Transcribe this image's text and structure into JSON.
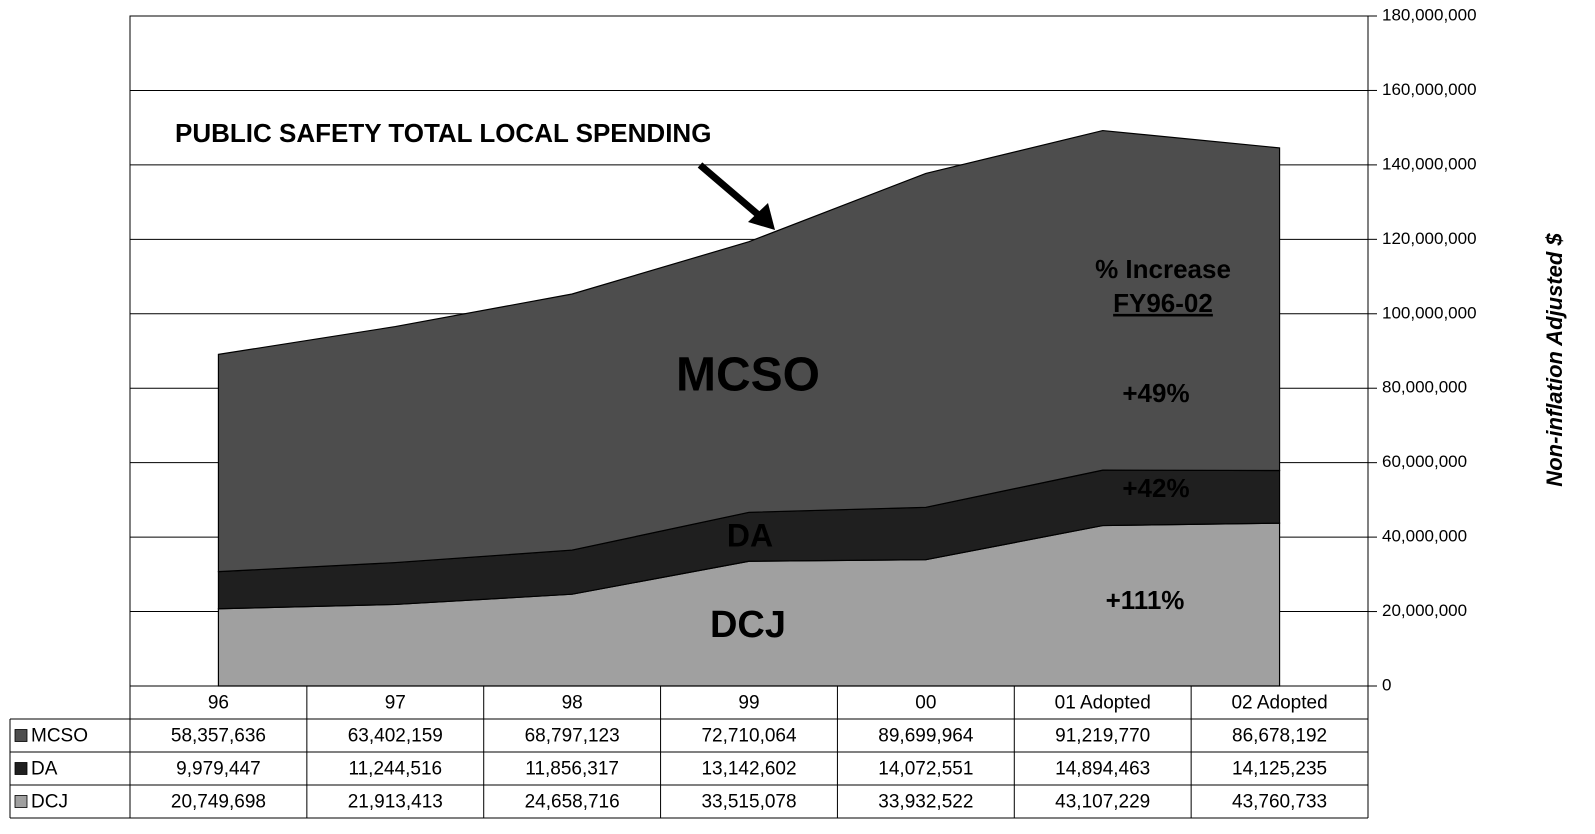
{
  "chart_data": {
    "type": "stacked_area",
    "categories": [
      "96",
      "97",
      "98",
      "99",
      "00",
      "01 Adopted",
      "02 Adopted"
    ],
    "series": [
      {
        "name": "MCSO",
        "color": "#4d4d4d",
        "values": [
          58357636,
          63402159,
          68797123,
          72710064,
          89699964,
          91219770,
          86678192
        ],
        "value_labels": [
          "58,357,636",
          "63,402,159",
          "68,797,123",
          "72,710,064",
          "89,699,964",
          "91,219,770",
          "86,678,192"
        ]
      },
      {
        "name": "DA",
        "color": "#1f1f1f",
        "values": [
          9979447,
          11244516,
          11856317,
          13142602,
          14072551,
          14894463,
          14125235
        ],
        "value_labels": [
          "9,979,447",
          "11,244,516",
          "11,856,317",
          "13,142,602",
          "14,072,551",
          "14,894,463",
          "14,125,235"
        ]
      },
      {
        "name": "DCJ",
        "color": "#a0a0a0",
        "values": [
          20749698,
          21913413,
          24658716,
          33515078,
          33932522,
          43107229,
          43760733
        ],
        "value_labels": [
          "20,749,698",
          "21,913,413",
          "24,658,716",
          "33,515,078",
          "33,932,522",
          "43,107,229",
          "43,760,733"
        ]
      }
    ],
    "ylim": [
      0,
      180000000
    ],
    "yticks": [
      0,
      {
        "value": 20000000,
        "label": "20,000,000"
      },
      {
        "value": 40000000,
        "label": "40,000,000"
      },
      {
        "value": 60000000,
        "label": "60,000,000"
      },
      {
        "value": 80000000,
        "label": "80,000,000"
      },
      {
        "value": 100000000,
        "label": "100,000,000"
      },
      {
        "value": 120000000,
        "label": "120,000,000"
      },
      {
        "value": 140000000,
        "label": "140,000,000"
      },
      {
        "value": 160000000,
        "label": "160,000,000"
      },
      {
        "value": 180000000,
        "label": "180,000,000"
      }
    ],
    "y_axis_label": "Non-inflation Adjusted $",
    "grid": true,
    "annotations": {
      "total": "PUBLIC SAFETY TOTAL LOCAL SPENDING",
      "mcso": "MCSO",
      "da": "DA",
      "dcj": "DCJ",
      "increase_title": "% Increase",
      "increase_period": "FY96-02",
      "mcso_pct": "+49%",
      "da_pct": "+42%",
      "dcj_pct": "+111%"
    }
  }
}
